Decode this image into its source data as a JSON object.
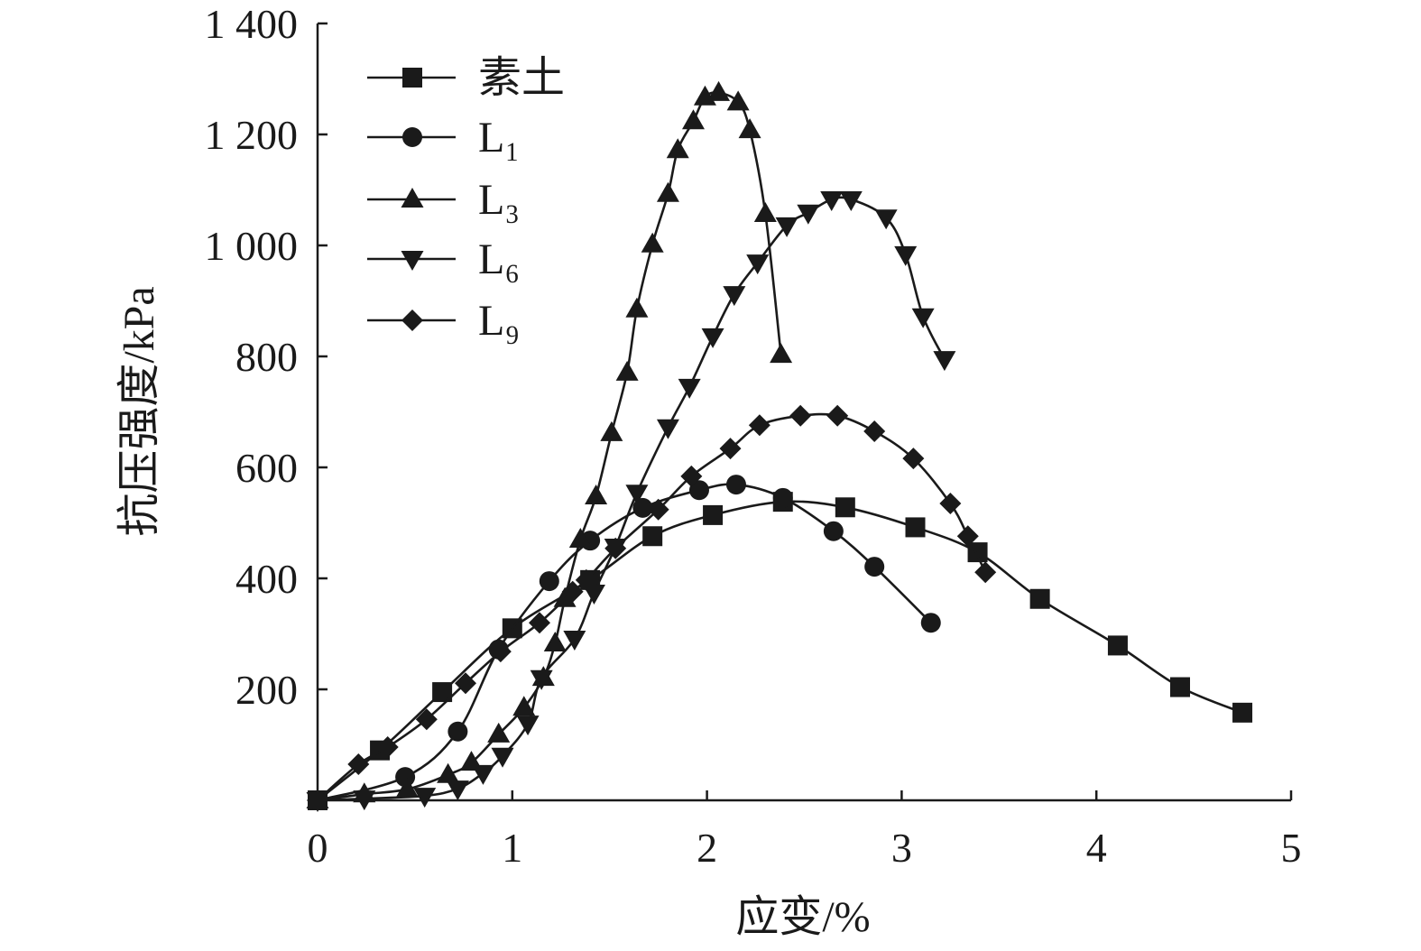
{
  "chart_data": {
    "type": "line",
    "title": "",
    "xlabel": "应变/%",
    "ylabel": "抗压强度/kPa",
    "xlim": [
      0,
      5
    ],
    "ylim": [
      0,
      1400
    ],
    "grid": false,
    "legend_position": "top-left",
    "xticks": [
      {
        "value": 0,
        "label": "0"
      },
      {
        "value": 1,
        "label": "1"
      },
      {
        "value": 2,
        "label": "2"
      },
      {
        "value": 3,
        "label": "3"
      },
      {
        "value": 4,
        "label": "4"
      },
      {
        "value": 5,
        "label": "5"
      }
    ],
    "yticks": [
      {
        "value": 200,
        "label": "200"
      },
      {
        "value": 400,
        "label": "400"
      },
      {
        "value": 600,
        "label": "600"
      },
      {
        "value": 800,
        "label": "800"
      },
      {
        "value": 1000,
        "label": "1 000"
      },
      {
        "value": 1200,
        "label": "1 200"
      },
      {
        "value": 1400,
        "label": "1 400"
      }
    ],
    "colors": {
      "line": "#1a1a1a",
      "marker": "#1a1a1a"
    },
    "series": [
      {
        "name": "素土",
        "marker": "square",
        "points": [
          [
            0,
            0
          ],
          [
            0.32,
            90
          ],
          [
            0.64,
            195
          ],
          [
            1.0,
            310
          ],
          [
            1.4,
            397
          ],
          [
            1.72,
            476
          ],
          [
            2.03,
            514
          ],
          [
            2.39,
            538
          ],
          [
            2.71,
            528
          ],
          [
            3.07,
            492
          ],
          [
            3.39,
            447
          ],
          [
            3.71,
            363
          ],
          [
            4.11,
            279
          ],
          [
            4.43,
            204
          ],
          [
            4.75,
            158
          ]
        ]
      },
      {
        "name": "L₁",
        "marker": "circle",
        "points": [
          [
            0,
            0
          ],
          [
            0.45,
            42
          ],
          [
            0.72,
            124
          ],
          [
            0.93,
            272
          ],
          [
            1.19,
            395
          ],
          [
            1.4,
            468
          ],
          [
            1.67,
            527
          ],
          [
            1.96,
            559
          ],
          [
            2.15,
            569
          ],
          [
            2.39,
            545
          ],
          [
            2.65,
            485
          ],
          [
            2.86,
            421
          ],
          [
            3.15,
            320
          ]
        ]
      },
      {
        "name": "L₃",
        "marker": "triangle-up",
        "points": [
          [
            0,
            0
          ],
          [
            0.24,
            11
          ],
          [
            0.46,
            20
          ],
          [
            0.67,
            46
          ],
          [
            0.79,
            68
          ],
          [
            0.93,
            119
          ],
          [
            1.06,
            167
          ],
          [
            1.16,
            221
          ],
          [
            1.22,
            283
          ],
          [
            1.27,
            363
          ],
          [
            1.35,
            470
          ],
          [
            1.43,
            548
          ],
          [
            1.51,
            662
          ],
          [
            1.59,
            771
          ],
          [
            1.64,
            885
          ],
          [
            1.72,
            1002
          ],
          [
            1.8,
            1093
          ],
          [
            1.85,
            1172
          ],
          [
            1.93,
            1224
          ],
          [
            1.99,
            1267
          ],
          [
            2.06,
            1275
          ],
          [
            2.16,
            1258
          ],
          [
            2.22,
            1208
          ],
          [
            2.3,
            1057
          ],
          [
            2.38,
            803
          ]
        ]
      },
      {
        "name": "L₆",
        "marker": "triangle-down",
        "points": [
          [
            0,
            0
          ],
          [
            0.24,
            3
          ],
          [
            0.55,
            8
          ],
          [
            0.72,
            21
          ],
          [
            0.85,
            49
          ],
          [
            0.95,
            80
          ],
          [
            1.08,
            138
          ],
          [
            1.15,
            220
          ],
          [
            1.32,
            291
          ],
          [
            1.42,
            374
          ],
          [
            1.53,
            457
          ],
          [
            1.64,
            554
          ],
          [
            1.8,
            672
          ],
          [
            1.91,
            745
          ],
          [
            2.03,
            836
          ],
          [
            2.14,
            912
          ],
          [
            2.26,
            969
          ],
          [
            2.41,
            1036
          ],
          [
            2.52,
            1059
          ],
          [
            2.64,
            1083
          ],
          [
            2.74,
            1083
          ],
          [
            2.92,
            1050
          ],
          [
            3.02,
            984
          ],
          [
            3.11,
            872
          ],
          [
            3.22,
            795
          ]
        ]
      },
      {
        "name": "L₉",
        "marker": "diamond",
        "points": [
          [
            0,
            0
          ],
          [
            0.21,
            65
          ],
          [
            0.36,
            96
          ],
          [
            0.56,
            146
          ],
          [
            0.76,
            211
          ],
          [
            0.94,
            268
          ],
          [
            1.14,
            320
          ],
          [
            1.31,
            376
          ],
          [
            1.38,
            397
          ],
          [
            1.53,
            454
          ],
          [
            1.75,
            524
          ],
          [
            1.92,
            584
          ],
          [
            2.12,
            634
          ],
          [
            2.27,
            676
          ],
          [
            2.48,
            693
          ],
          [
            2.67,
            693
          ],
          [
            2.86,
            665
          ],
          [
            3.06,
            616
          ],
          [
            3.25,
            535
          ],
          [
            3.34,
            476
          ],
          [
            3.43,
            411
          ]
        ]
      }
    ]
  }
}
